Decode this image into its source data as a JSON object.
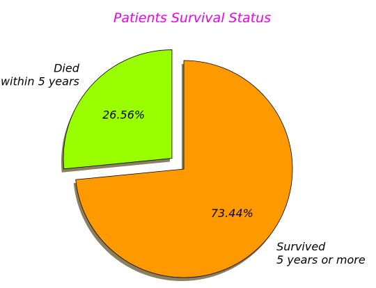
{
  "colors": {
    "title": "#ee00ee",
    "survived": "#ff9900",
    "died": "#99ff00",
    "shadow": "#8a8060",
    "edge": "#000000"
  },
  "chart_data": {
    "type": "pie",
    "title": "Patients Survival Status",
    "slices": [
      {
        "label_lines": [
          "Survived",
          "5 years or more"
        ],
        "value": 73.44,
        "pct_label": "73.44%",
        "color": "#ff9900",
        "exploded": false
      },
      {
        "label_lines": [
          "Died",
          "within 5 years"
        ],
        "value": 26.56,
        "pct_label": "26.56%",
        "color": "#99ff00",
        "exploded": true
      }
    ],
    "start_angle_deg": 90,
    "direction": "clockwise",
    "shadow": true,
    "legend": "none"
  }
}
